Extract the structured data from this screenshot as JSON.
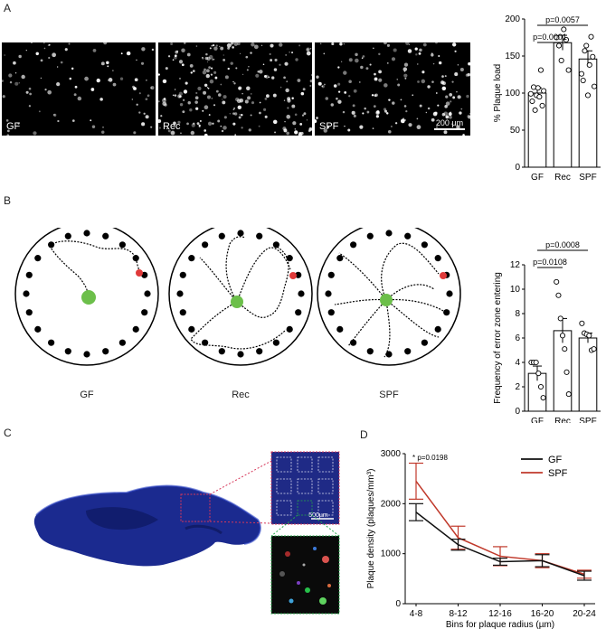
{
  "panels": {
    "A": "A",
    "B": "B",
    "C": "C",
    "D": "D"
  },
  "panel_a": {
    "images": [
      {
        "label": "GF",
        "density": 90
      },
      {
        "label": "Rec",
        "density": 230
      },
      {
        "label": "SPF",
        "density": 160
      }
    ],
    "scale_bar": "200 µm"
  },
  "panel_b": {
    "labels": [
      "GF",
      "Rec",
      "SPF"
    ]
  },
  "panel_c": {
    "scale_bar": "500µm"
  },
  "chart_data": [
    {
      "type": "bar",
      "panel": "A",
      "categories": [
        "GF",
        "Rec",
        "SPF"
      ],
      "values": [
        100,
        168,
        146
      ],
      "errors": [
        7,
        10,
        11
      ],
      "points": [
        [
          99,
          89,
          108,
          77,
          97,
          107,
          95,
          131,
          83,
          103
        ],
        [
          175,
          164,
          144,
          186,
          172,
          131
        ],
        [
          126,
          117,
          157,
          164,
          97,
          138,
          176,
          149,
          109
        ]
      ],
      "ylabel": "% Plaque load",
      "ylim": [
        0,
        200
      ],
      "yticks": [
        0,
        50,
        100,
        150,
        200
      ],
      "comparisons": [
        {
          "from": "GF",
          "to": "Rec",
          "label": "p=0.0001"
        },
        {
          "from": "GF",
          "to": "SPF",
          "label": "p=0.0057"
        }
      ]
    },
    {
      "type": "bar",
      "panel": "B",
      "categories": [
        "GF",
        "Rec",
        "SPF"
      ],
      "values": [
        3.1,
        6.6,
        6.0
      ],
      "errors": [
        0.6,
        1.0,
        0.4
      ],
      "points": [
        [
          4,
          4,
          4,
          3.1,
          2,
          1.1
        ],
        [
          10.6,
          9.5,
          7.6,
          6.2,
          5.1,
          3.2,
          1.4
        ],
        [
          7.2,
          6.4,
          6.3,
          6.2,
          5,
          5.1
        ]
      ],
      "ylabel": "Frequency of error zone entering",
      "ylim": [
        0,
        12
      ],
      "yticks": [
        0,
        2,
        4,
        6,
        8,
        10,
        12
      ],
      "comparisons": [
        {
          "from": "GF",
          "to": "Rec",
          "label": "p=0.0108"
        },
        {
          "from": "GF",
          "to": "SPF",
          "label": "p=0.0008"
        }
      ]
    },
    {
      "type": "line",
      "panel": "D",
      "categories": [
        "4-8",
        "8-12",
        "12-16",
        "16-20",
        "20-24"
      ],
      "series": [
        {
          "name": "GF",
          "values": [
            1830,
            1180,
            840,
            860,
            560
          ],
          "errors": [
            170,
            110,
            70,
            120,
            90
          ],
          "color": "#111111"
        },
        {
          "name": "SPF",
          "values": [
            2450,
            1320,
            950,
            860,
            590
          ],
          "errors": [
            360,
            230,
            190,
            140,
            80
          ],
          "color": "#c0392b"
        }
      ],
      "xlabel": "Bins for plaque radius (µm)",
      "ylabel": "Plaque density (plaques/mm³)",
      "ylim": [
        0,
        3000
      ],
      "yticks": [
        0,
        1000,
        2000,
        3000
      ],
      "annotation": "* p=0.0198",
      "legend": "top-right"
    }
  ]
}
